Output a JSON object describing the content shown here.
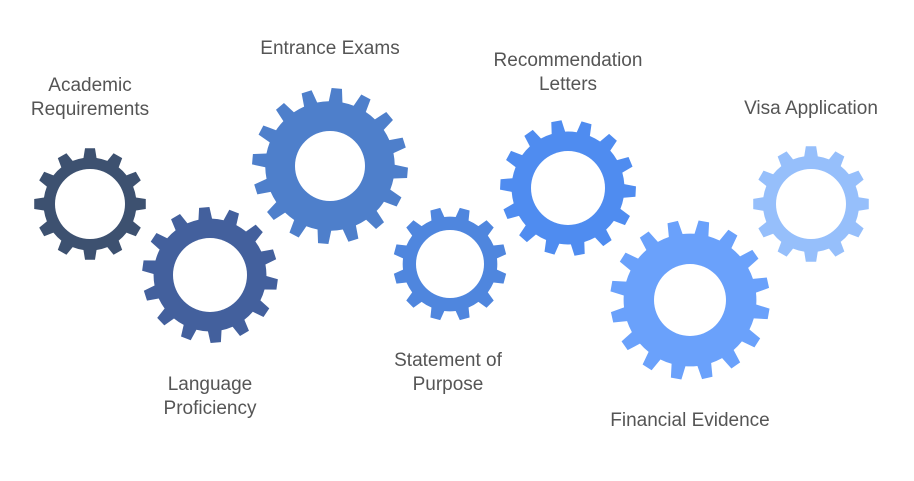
{
  "gears": [
    {
      "id": "academic-requirements",
      "label_lines": [
        "Academic",
        "Requirements"
      ],
      "color": "#3d5170"
    },
    {
      "id": "language-proficiency",
      "label_lines": [
        "Language",
        "Proficiency"
      ],
      "color": "#43609d"
    },
    {
      "id": "entrance-exams",
      "label_lines": [
        "Entrance Exams"
      ],
      "color": "#4e7fcb"
    },
    {
      "id": "statement-of-purpose",
      "label_lines": [
        "Statement of",
        "Purpose"
      ],
      "color": "#4f86de"
    },
    {
      "id": "recommendation-letters",
      "label_lines": [
        "Recommendation",
        "Letters"
      ],
      "color": "#4f8cf0"
    },
    {
      "id": "financial-evidence",
      "label_lines": [
        "Financial Evidence"
      ],
      "color": "#6aa1fb"
    },
    {
      "id": "visa-application",
      "label_lines": [
        "Visa Application"
      ],
      "color": "#96bffb"
    }
  ]
}
